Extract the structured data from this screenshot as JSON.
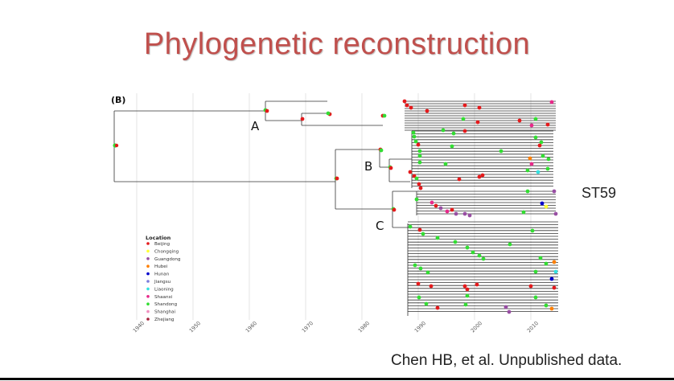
{
  "slide": {
    "title": "Phylogenetic reconstruction",
    "caption": "Chen HB, et al. Unpublished data.",
    "st_label": "ST59"
  },
  "figure": {
    "panel_label": "(B)",
    "clade_labels": [
      "A",
      "B",
      "C"
    ],
    "axis_ticks": [
      "1940",
      "1950",
      "1960",
      "1970",
      "1980",
      "1990",
      "2000",
      "2010"
    ],
    "legend": {
      "title": "Location",
      "entries": [
        {
          "label": "Beijing",
          "color": "#e41a1c"
        },
        {
          "label": "Chongqing",
          "color": "#ffff33"
        },
        {
          "label": "Guangdong",
          "color": "#984ea3"
        },
        {
          "label": "Hubei",
          "color": "#ff7f00"
        },
        {
          "label": "Hunan",
          "color": "#0000cc"
        },
        {
          "label": "Jiangsu",
          "color": "#7b7bdc"
        },
        {
          "label": "Liaoning",
          "color": "#33e0e0"
        },
        {
          "label": "Shaanxi",
          "color": "#e7298a"
        },
        {
          "label": "Shandong",
          "color": "#33dd33"
        },
        {
          "label": "Shanghai",
          "color": "#f08fc0"
        },
        {
          "label": "Zhejiang",
          "color": "#a6203a"
        }
      ]
    }
  }
}
